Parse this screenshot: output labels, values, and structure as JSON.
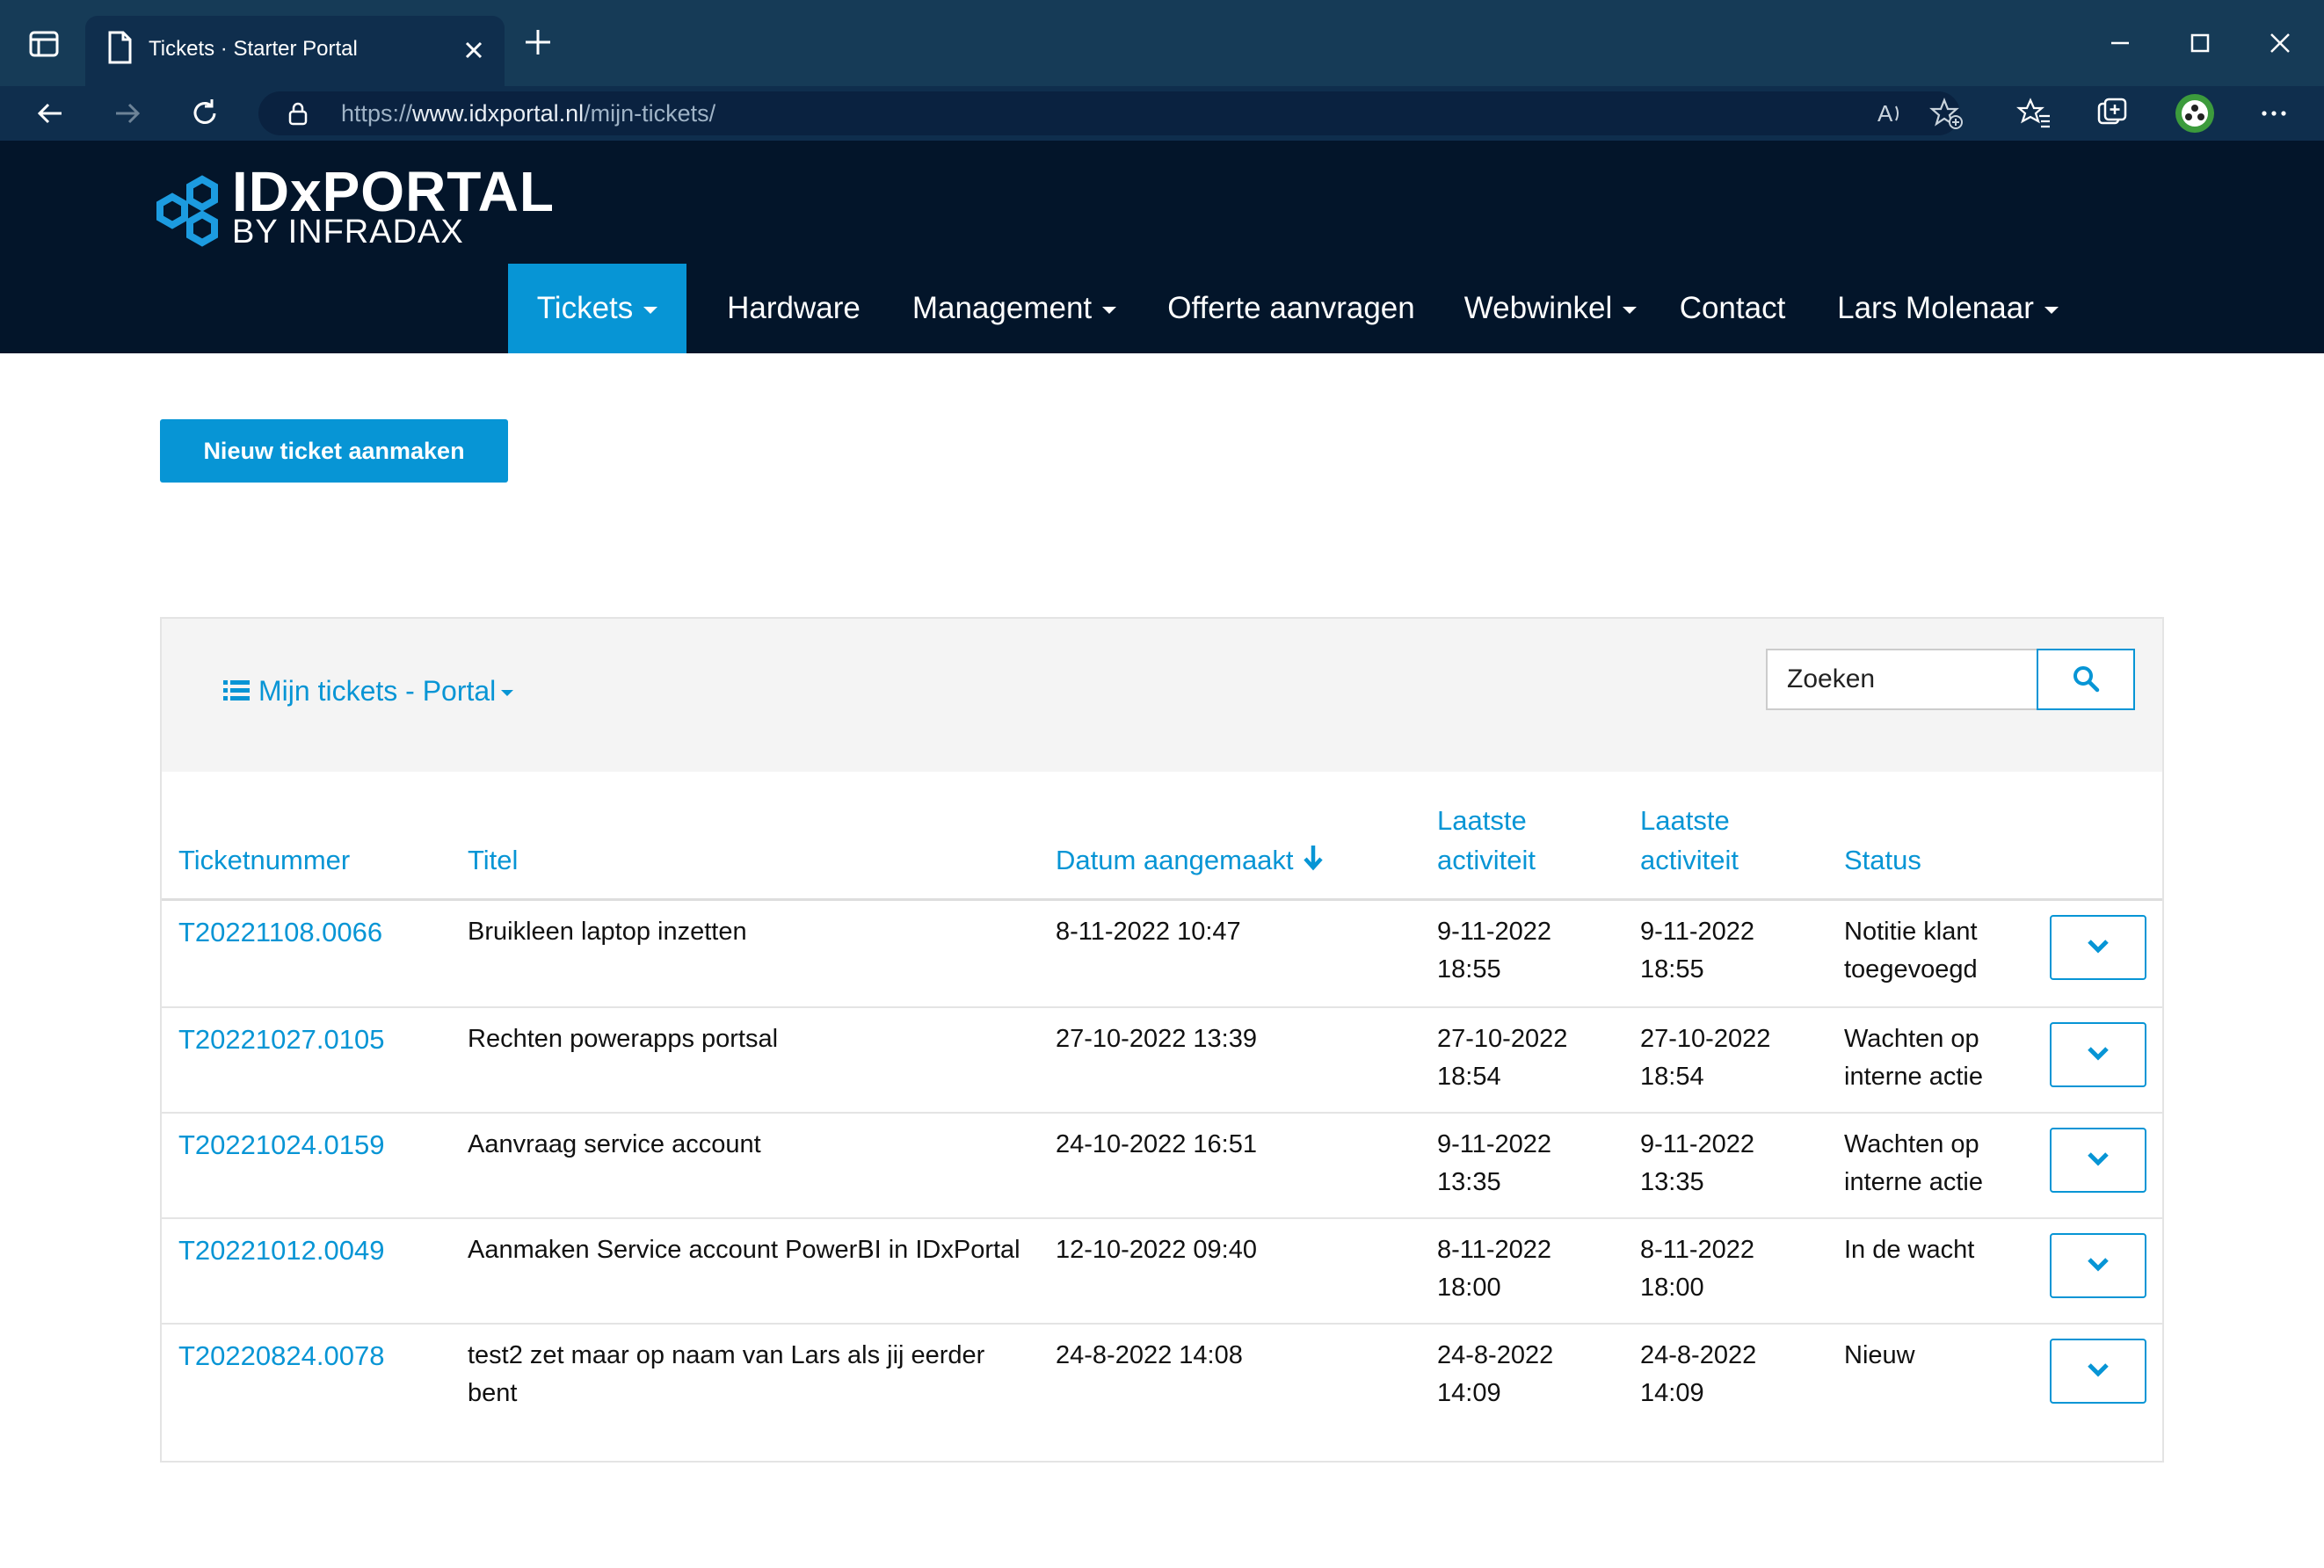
{
  "browser": {
    "tab_title": "Tickets  · Starter Portal",
    "url_prefix": "https://",
    "url_host": "www.idxportal.nl",
    "url_path": "/mijn-tickets/"
  },
  "site": {
    "logo_title": "IDxPORTAL",
    "logo_subtitle": "BY INFRADAX"
  },
  "nav": {
    "tickets": "Tickets",
    "hardware": "Hardware",
    "management": "Management",
    "offerte": "Offerte aanvragen",
    "webwinkel": "Webwinkel",
    "contact": "Contact",
    "user": "Lars Molenaar"
  },
  "actions": {
    "new_ticket": "Nieuw ticket aanmaken"
  },
  "panel": {
    "view_label": "Mijn tickets - Portal",
    "search_placeholder": "Zoeken"
  },
  "table": {
    "headers": {
      "number": "Ticketnummer",
      "title": "Titel",
      "created": "Datum aangemaakt",
      "activity1": [
        "Laatste",
        "activiteit"
      ],
      "activity2": [
        "Laatste",
        "activiteit"
      ],
      "status": "Status"
    },
    "rows": [
      {
        "number": "T20221108.0066",
        "title": [
          "Bruikleen laptop inzetten",
          ""
        ],
        "created": "8-11-2022 10:47",
        "act1": [
          "9-11-2022",
          "18:55"
        ],
        "act2": [
          "9-11-2022",
          "18:55"
        ],
        "status": [
          "Notitie klant",
          "toegevoegd"
        ]
      },
      {
        "number": "T20221027.0105",
        "title": [
          "Rechten powerapps portsal",
          ""
        ],
        "created": "27-10-2022 13:39",
        "act1": [
          "27-10-2022",
          "18:54"
        ],
        "act2": [
          "27-10-2022",
          "18:54"
        ],
        "status": [
          "Wachten op",
          "interne actie"
        ]
      },
      {
        "number": "T20221024.0159",
        "title": [
          "Aanvraag service account",
          ""
        ],
        "created": "24-10-2022 16:51",
        "act1": [
          "9-11-2022",
          "13:35"
        ],
        "act2": [
          "9-11-2022",
          "13:35"
        ],
        "status": [
          "Wachten op",
          "interne actie"
        ]
      },
      {
        "number": "T20221012.0049",
        "title": [
          "Aanmaken Service account PowerBI in IDxPortal",
          ""
        ],
        "created": "12-10-2022 09:40",
        "act1": [
          "8-11-2022",
          "18:00"
        ],
        "act2": [
          "8-11-2022",
          "18:00"
        ],
        "status": [
          "In de wacht",
          ""
        ]
      },
      {
        "number": "T20220824.0078",
        "title": [
          "test2 zet maar op naam van Lars als jij eerder",
          "bent"
        ],
        "created": "24-8-2022 14:08",
        "act1": [
          "24-8-2022",
          "14:09"
        ],
        "act2": [
          "24-8-2022",
          "14:09"
        ],
        "status": [
          "Nieuw",
          ""
        ]
      }
    ]
  }
}
